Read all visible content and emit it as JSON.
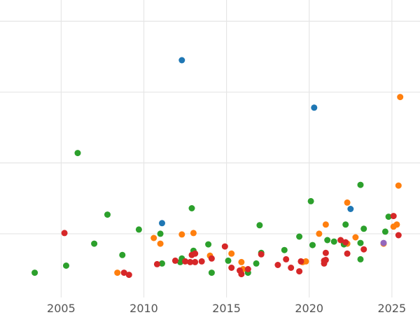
{
  "chart_data": {
    "type": "scatter",
    "title": "",
    "xlabel": "",
    "ylabel": "",
    "xlim": [
      2001.3,
      2026.7
    ],
    "ylim": [
      0,
      4.2
    ],
    "x_ticks": [
      2005,
      2010,
      2015,
      2020,
      2025
    ],
    "x_tick_labels": [
      "2005",
      "2010",
      "2015",
      "2020",
      "2025"
    ],
    "y_grid": [
      0.9,
      1.9,
      2.9,
      3.9
    ],
    "grid": true,
    "legend": "none",
    "series": [
      {
        "color": "#1f77b4",
        "points": [
          {
            "x": 2012.3,
            "y": 3.35
          },
          {
            "x": 2020.3,
            "y": 2.68
          },
          {
            "x": 2011.1,
            "y": 1.05
          },
          {
            "x": 2022.5,
            "y": 1.25
          }
        ]
      },
      {
        "color": "#ff7f0e",
        "points": [
          {
            "x": 2025.5,
            "y": 2.83
          },
          {
            "x": 2025.4,
            "y": 1.58
          },
          {
            "x": 2022.3,
            "y": 1.34
          },
          {
            "x": 2021.0,
            "y": 1.03
          },
          {
            "x": 2025.3,
            "y": 1.03
          },
          {
            "x": 2025.1,
            "y": 1.0
          },
          {
            "x": 2008.4,
            "y": 0.35
          },
          {
            "x": 2010.6,
            "y": 0.84
          },
          {
            "x": 2011.0,
            "y": 0.76
          },
          {
            "x": 2012.3,
            "y": 0.89
          },
          {
            "x": 2013.0,
            "y": 0.91
          },
          {
            "x": 2014.0,
            "y": 0.59
          },
          {
            "x": 2015.3,
            "y": 0.62
          },
          {
            "x": 2015.9,
            "y": 0.5
          },
          {
            "x": 2016.0,
            "y": 0.4
          },
          {
            "x": 2019.6,
            "y": 0.5
          },
          {
            "x": 2019.8,
            "y": 0.51
          },
          {
            "x": 2020.6,
            "y": 0.9
          },
          {
            "x": 2022.8,
            "y": 0.85
          },
          {
            "x": 2022.3,
            "y": 0.76
          },
          {
            "x": 2024.5,
            "y": 0.76
          }
        ]
      },
      {
        "color": "#2ca02c",
        "points": [
          {
            "x": 2003.4,
            "y": 0.35
          },
          {
            "x": 2005.3,
            "y": 0.45
          },
          {
            "x": 2006.0,
            "y": 2.04
          },
          {
            "x": 2007.0,
            "y": 0.76
          },
          {
            "x": 2007.8,
            "y": 1.17
          },
          {
            "x": 2008.7,
            "y": 0.6
          },
          {
            "x": 2009.7,
            "y": 0.96
          },
          {
            "x": 2011.0,
            "y": 0.9
          },
          {
            "x": 2011.1,
            "y": 0.48
          },
          {
            "x": 2012.2,
            "y": 0.5
          },
          {
            "x": 2012.3,
            "y": 0.55
          },
          {
            "x": 2012.9,
            "y": 1.26
          },
          {
            "x": 2013.0,
            "y": 0.66
          },
          {
            "x": 2013.9,
            "y": 0.75
          },
          {
            "x": 2014.1,
            "y": 0.35
          },
          {
            "x": 2015.1,
            "y": 0.52
          },
          {
            "x": 2016.3,
            "y": 0.35
          },
          {
            "x": 2016.8,
            "y": 0.48
          },
          {
            "x": 2017.0,
            "y": 1.02
          },
          {
            "x": 2017.1,
            "y": 0.63
          },
          {
            "x": 2018.5,
            "y": 0.67
          },
          {
            "x": 2019.4,
            "y": 0.86
          },
          {
            "x": 2020.1,
            "y": 1.36
          },
          {
            "x": 2020.2,
            "y": 0.74
          },
          {
            "x": 2021.1,
            "y": 0.81
          },
          {
            "x": 2021.5,
            "y": 0.79
          },
          {
            "x": 2022.1,
            "y": 0.75
          },
          {
            "x": 2022.2,
            "y": 1.03
          },
          {
            "x": 2023.1,
            "y": 1.59
          },
          {
            "x": 2023.1,
            "y": 0.77
          },
          {
            "x": 2023.1,
            "y": 0.54
          },
          {
            "x": 2023.3,
            "y": 0.97
          },
          {
            "x": 2024.6,
            "y": 0.93
          },
          {
            "x": 2024.8,
            "y": 1.14
          }
        ]
      },
      {
        "color": "#d62728",
        "points": [
          {
            "x": 2005.2,
            "y": 0.91
          },
          {
            "x": 2008.8,
            "y": 0.35
          },
          {
            "x": 2009.1,
            "y": 0.32
          },
          {
            "x": 2010.8,
            "y": 0.47
          },
          {
            "x": 2011.9,
            "y": 0.52
          },
          {
            "x": 2012.5,
            "y": 0.51
          },
          {
            "x": 2012.8,
            "y": 0.5
          },
          {
            "x": 2013.1,
            "y": 0.5
          },
          {
            "x": 2012.9,
            "y": 0.6
          },
          {
            "x": 2013.1,
            "y": 0.62
          },
          {
            "x": 2013.5,
            "y": 0.51
          },
          {
            "x": 2014.1,
            "y": 0.55
          },
          {
            "x": 2014.9,
            "y": 0.72
          },
          {
            "x": 2015.3,
            "y": 0.42
          },
          {
            "x": 2015.8,
            "y": 0.38
          },
          {
            "x": 2015.9,
            "y": 0.33
          },
          {
            "x": 2016.3,
            "y": 0.4
          },
          {
            "x": 2017.1,
            "y": 0.61
          },
          {
            "x": 2018.1,
            "y": 0.46
          },
          {
            "x": 2018.6,
            "y": 0.54
          },
          {
            "x": 2018.9,
            "y": 0.42
          },
          {
            "x": 2019.4,
            "y": 0.37
          },
          {
            "x": 2019.5,
            "y": 0.51
          },
          {
            "x": 2020.9,
            "y": 0.52
          },
          {
            "x": 2020.9,
            "y": 0.48
          },
          {
            "x": 2021.0,
            "y": 0.53
          },
          {
            "x": 2021.0,
            "y": 0.63
          },
          {
            "x": 2021.9,
            "y": 0.81
          },
          {
            "x": 2022.2,
            "y": 0.78
          },
          {
            "x": 2022.3,
            "y": 0.62
          },
          {
            "x": 2023.3,
            "y": 0.68
          },
          {
            "x": 2025.1,
            "y": 1.15
          },
          {
            "x": 2025.4,
            "y": 0.88
          }
        ]
      },
      {
        "color": "#9467bd",
        "points": [
          {
            "x": 2024.5,
            "y": 0.77
          }
        ]
      }
    ]
  }
}
